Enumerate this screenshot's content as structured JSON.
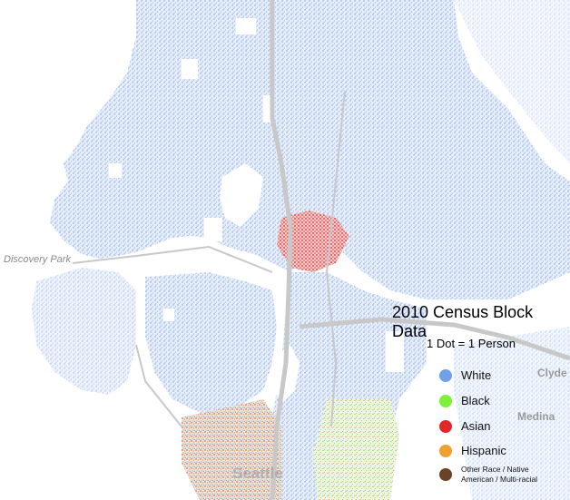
{
  "map": {
    "title": "2010 Census Block Data",
    "subtitle": "1 Dot = 1 Person",
    "places": [
      {
        "id": "discovery-park",
        "label": "Discovery Park"
      },
      {
        "id": "clyde",
        "label": "Clyde"
      },
      {
        "id": "medina",
        "label": "Medina"
      },
      {
        "id": "seattle",
        "label": "Seattle"
      }
    ],
    "legend": [
      {
        "label": "White",
        "color": "#6fa0e8"
      },
      {
        "label": "Black",
        "color": "#7ef03c"
      },
      {
        "label": "Asian",
        "color": "#e0282a"
      },
      {
        "label": "Hispanic",
        "color": "#f0a030"
      },
      {
        "label": "Other Race / Native American / Multi-racial",
        "color": "#6b4226"
      }
    ]
  }
}
